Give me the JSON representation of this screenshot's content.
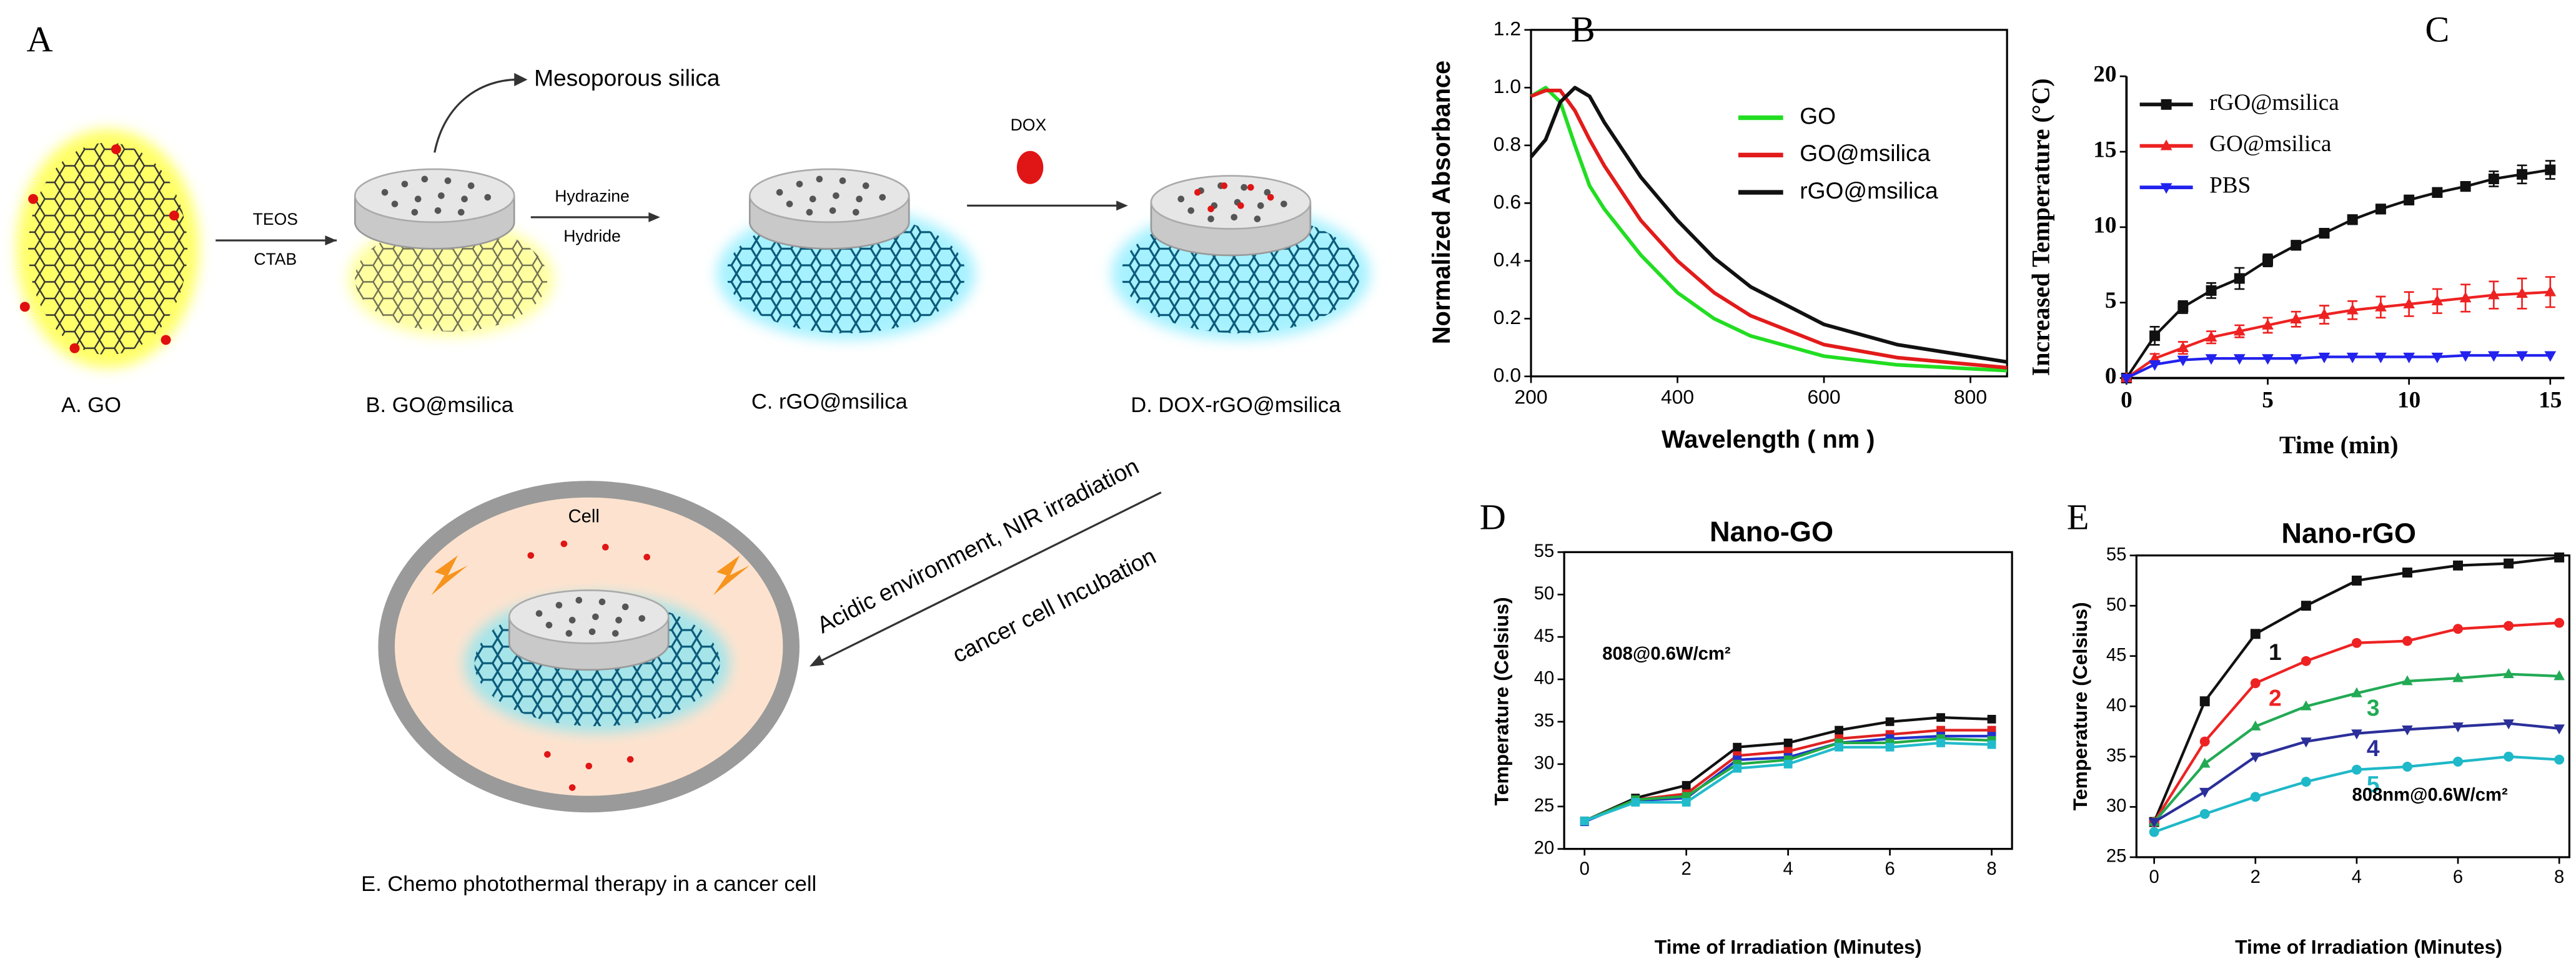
{
  "figure": {
    "panel": "A",
    "mesoporous": "Mesoporous silica",
    "step1_top": "TEOS",
    "step1_bottom": "CTAB",
    "step2_top": "Hydrazine",
    "step2_bottom": "Hydride",
    "step3": "DOX",
    "labels": [
      "A. GO",
      "B. GO@msilica",
      "C. rGO@msilica",
      "D. DOX-rGO@msilica"
    ],
    "arrow_top": "Acidic environment, NIR irradiation",
    "arrow_bottom": "cancer cell Incubation",
    "cell": "Cell",
    "caption": "E. Chemo photothermal therapy in a cancer cell"
  },
  "chart_data": [
    {
      "type": "line",
      "panel": "B",
      "xlabel": "Wavelength ( nm )",
      "ylabel": "Normalized Absorbance",
      "x": [
        200,
        220,
        240,
        260,
        280,
        300,
        350,
        400,
        450,
        500,
        600,
        700,
        850
      ],
      "series": [
        {
          "name": "GO",
          "color": "#22dd22",
          "values": [
            0.97,
            1.0,
            0.95,
            0.8,
            0.66,
            0.58,
            0.42,
            0.29,
            0.2,
            0.14,
            0.07,
            0.04,
            0.02
          ]
        },
        {
          "name": "GO@msilica",
          "color": "#e21b1b",
          "values": [
            0.97,
            0.99,
            0.99,
            0.92,
            0.82,
            0.73,
            0.54,
            0.4,
            0.29,
            0.21,
            0.11,
            0.065,
            0.03
          ]
        },
        {
          "name": "rGO@msilica",
          "color": "#111111",
          "values": [
            0.76,
            0.82,
            0.95,
            1.0,
            0.97,
            0.88,
            0.69,
            0.54,
            0.41,
            0.31,
            0.18,
            0.11,
            0.05
          ]
        }
      ],
      "xlim": [
        200,
        850
      ],
      "ylim": [
        0,
        1.2
      ],
      "xticks": [
        200,
        400,
        600,
        800
      ],
      "yticks": [
        {
          "value": 0,
          "label": "0.0"
        },
        0.2,
        0.4,
        0.6,
        0.8,
        {
          "value": 1,
          "label": "1.0"
        },
        1.2
      ],
      "frame": true,
      "legend": "upper right"
    },
    {
      "type": "line",
      "panel": "C",
      "xlabel": "Time (min)",
      "ylabel": "Increased Temperature (°C)",
      "x": [
        0,
        1,
        2,
        3,
        4,
        5,
        6,
        7,
        8,
        9,
        10,
        11,
        12,
        13,
        14,
        15
      ],
      "series": [
        {
          "name": "rGO@msilica",
          "color": "#111111",
          "marker": "square",
          "values": [
            0,
            2.8,
            4.7,
            5.8,
            6.6,
            7.8,
            8.8,
            9.6,
            10.5,
            11.2,
            11.8,
            12.3,
            12.7,
            13.2,
            13.5,
            13.8
          ],
          "errors": [
            0,
            0.6,
            0.4,
            0.5,
            0.7,
            0.4,
            0.3,
            0.3,
            0.3,
            0.3,
            0.3,
            0.3,
            0.3,
            0.5,
            0.6,
            0.6
          ]
        },
        {
          "name": "GO@msilica",
          "color": "#ee2222",
          "marker": "triangle",
          "values": [
            0,
            1.3,
            2.0,
            2.7,
            3.1,
            3.5,
            3.9,
            4.2,
            4.5,
            4.7,
            4.9,
            5.1,
            5.3,
            5.5,
            5.6,
            5.7
          ],
          "errors": [
            0,
            0.3,
            0.4,
            0.4,
            0.4,
            0.5,
            0.5,
            0.6,
            0.6,
            0.7,
            0.8,
            0.8,
            0.9,
            0.9,
            1.0,
            1.0
          ]
        },
        {
          "name": "PBS",
          "color": "#2222ee",
          "marker": "triangle-down",
          "values": [
            0,
            0.9,
            1.2,
            1.3,
            1.3,
            1.3,
            1.3,
            1.4,
            1.4,
            1.4,
            1.4,
            1.4,
            1.5,
            1.5,
            1.5,
            1.5
          ]
        }
      ],
      "xlim": [
        0,
        15.5
      ],
      "ylim": [
        0,
        20
      ],
      "xticks": [
        0,
        5,
        10,
        15
      ],
      "yticks": [
        0,
        5,
        10,
        15,
        20
      ],
      "frame": false,
      "legend": "upper left"
    },
    {
      "type": "line",
      "panel": "D",
      "title": "Nano-GO",
      "annotation": "808@0.6W/cm²",
      "xlabel": "Time of Irradiation (Minutes)",
      "ylabel": "Temperature (Celsius)",
      "x": [
        0,
        1,
        2,
        3,
        4,
        5,
        6,
        7,
        8
      ],
      "series": [
        {
          "color": "#111111",
          "marker": "square",
          "values": [
            23.3,
            26,
            27.5,
            32,
            32.5,
            34,
            35,
            35.5,
            35.3
          ]
        },
        {
          "color": "#e02020",
          "marker": "square",
          "values": [
            23.3,
            25.8,
            26.5,
            31,
            31.5,
            33,
            33.5,
            34,
            34
          ]
        },
        {
          "color": "#2233cc",
          "marker": "square",
          "values": [
            23.2,
            25.7,
            26,
            30.5,
            30.8,
            32.5,
            33,
            33.3,
            33.3
          ]
        },
        {
          "color": "#22aa44",
          "marker": "square",
          "values": [
            23.3,
            25.8,
            26.2,
            30,
            30.5,
            32.5,
            32.5,
            33,
            32.8
          ]
        },
        {
          "color": "#22bbcc",
          "marker": "square",
          "values": [
            23.3,
            25.5,
            25.5,
            29.5,
            30,
            32,
            32,
            32.5,
            32.3
          ]
        }
      ],
      "xlim": [
        -0.4,
        8.4
      ],
      "ylim": [
        20,
        55
      ],
      "xticks": [
        0,
        2,
        4,
        6,
        8
      ],
      "yticks": [
        20,
        25,
        30,
        35,
        40,
        45,
        50,
        55
      ],
      "frame": true
    },
    {
      "type": "line",
      "panel": "E",
      "title": "Nano-rGO",
      "annotation": "808nm@0.6W/cm²",
      "xlabel": "Time of Irradiation (Minutes)",
      "ylabel": "Temperature (Celsius)",
      "x": [
        0,
        1,
        2,
        3,
        4,
        5,
        6,
        7,
        8
      ],
      "series": [
        {
          "name": "1",
          "color": "#111111",
          "marker": "square",
          "values": [
            28.5,
            40.5,
            47.2,
            50,
            52.5,
            53.3,
            54,
            54.2,
            54.8
          ]
        },
        {
          "name": "2",
          "color": "#ee2222",
          "marker": "circle",
          "values": [
            28.5,
            36.5,
            42.3,
            44.5,
            46.3,
            46.5,
            47.7,
            48,
            48.3
          ]
        },
        {
          "name": "3",
          "color": "#22aa55",
          "marker": "triangle",
          "values": [
            28.5,
            34.3,
            38,
            40,
            41.3,
            42.5,
            42.8,
            43.2,
            43
          ]
        },
        {
          "name": "4",
          "color": "#2b2f9a",
          "marker": "triangle-down",
          "values": [
            28.5,
            31.5,
            35,
            36.5,
            37.3,
            37.7,
            38,
            38.3,
            37.8
          ]
        },
        {
          "name": "5",
          "color": "#1fb8c8",
          "marker": "circle",
          "values": [
            27.5,
            29.3,
            31,
            32.5,
            33.7,
            34,
            34.5,
            35,
            34.7
          ]
        }
      ],
      "xlim": [
        -0.35,
        8.2
      ],
      "ylim": [
        25,
        55
      ],
      "xticks": [
        0,
        2,
        4,
        6,
        8
      ],
      "yticks": [
        25,
        30,
        35,
        40,
        45,
        50,
        55
      ],
      "frame": true,
      "legend": "inline"
    }
  ]
}
